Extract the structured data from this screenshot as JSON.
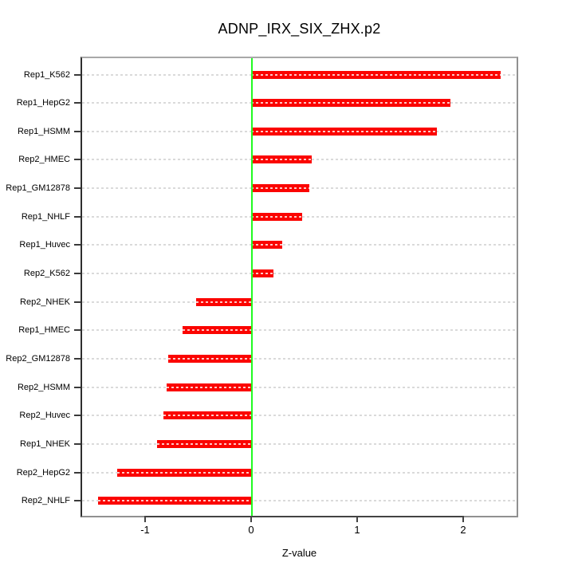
{
  "title": "ADNP_IRX_SIX_ZHX.p2",
  "chart_data": {
    "type": "bar",
    "orientation": "horizontal",
    "title": "ADNP_IRX_SIX_ZHX.p2",
    "xlabel": "Z-value",
    "ylabel": "",
    "categories": [
      "Rep1_K562",
      "Rep1_HepG2",
      "Rep1_HSMM",
      "Rep2_HMEC",
      "Rep1_GM12878",
      "Rep1_NHLF",
      "Rep1_Huvec",
      "Rep2_K562",
      "Rep2_NHEK",
      "Rep1_HMEC",
      "Rep2_GM12878",
      "Rep2_HSMM",
      "Rep2_Huvec",
      "Rep1_NHEK",
      "Rep2_HepG2",
      "Rep2_NHLF"
    ],
    "values": [
      2.35,
      1.88,
      1.75,
      0.57,
      0.55,
      0.48,
      0.29,
      0.21,
      -0.52,
      -0.65,
      -0.78,
      -0.8,
      -0.83,
      -0.89,
      -1.26,
      -1.44
    ],
    "x_ticks": [
      -1,
      0,
      1,
      2
    ],
    "x_tick_labels": [
      "-1",
      "0",
      "1",
      "2"
    ],
    "xlim": [
      -1.59,
      2.51
    ],
    "grid": "horizontal-dashed",
    "legend": "none",
    "colors": {
      "bar": "#fb0400",
      "zero_line": "#21fb21",
      "grid": "#dadada",
      "box_border": "#909090",
      "axis_line": "#434343",
      "text": "#000000",
      "background": "#ffffff"
    }
  }
}
